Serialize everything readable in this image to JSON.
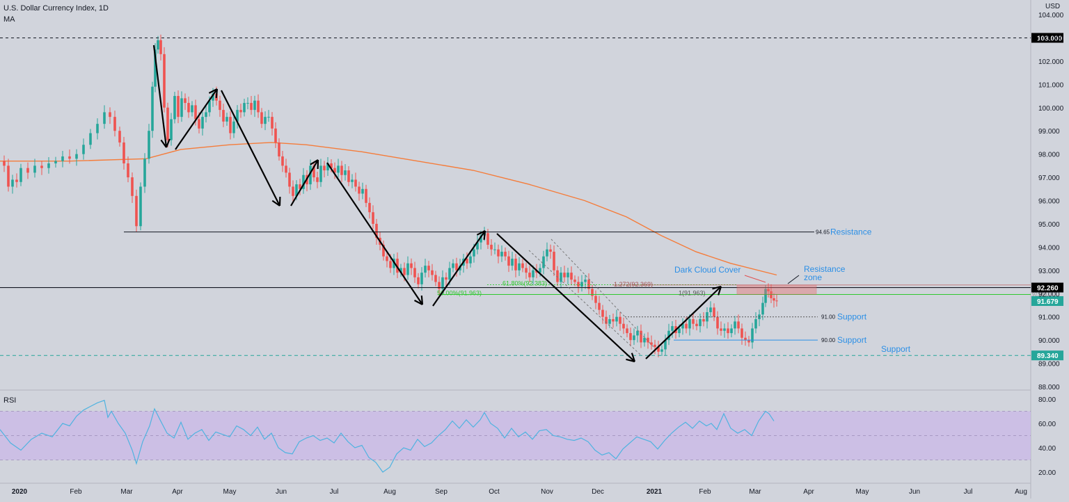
{
  "header": {
    "title": "U.S. Dollar Currency Index, 1D",
    "indicator": "MA",
    "currency": "USD",
    "rsi_label": "RSI"
  },
  "colors": {
    "background": "#d1d4dc",
    "up_candle": "#26a69a",
    "down_candle": "#ef5350",
    "ma_line": "#f57c3a",
    "rsi_line": "#4fb3e0",
    "rsi_band": "#c9b8e8",
    "fib": "#2ec82e",
    "label_blue": "#2b8fe6",
    "badge_green": "#26a69a",
    "badge_black": "#000000"
  },
  "chart_data": [
    {
      "type": "candlestick",
      "title": "U.S. Dollar Currency Index, 1D",
      "ylabel": "USD",
      "ylim": [
        87.9,
        104.3
      ],
      "y_ticks": [
        "104.000",
        "103.000",
        "102.000",
        "101.000",
        "100.000",
        "99.000",
        "98.000",
        "97.000",
        "96.000",
        "95.000",
        "94.000",
        "93.000",
        "92.000",
        "91.000",
        "90.000",
        "89.000",
        "88.000"
      ],
      "x_ticks": [
        "2020",
        "Feb",
        "Mar",
        "Apr",
        "May",
        "Jun",
        "Jul",
        "Aug",
        "Sep",
        "Oct",
        "Nov",
        "Dec",
        "2021",
        "Feb",
        "Mar",
        "Apr",
        "May",
        "Jun",
        "Jul",
        "Aug"
      ],
      "closes": [
        [
          0,
          97.7
        ],
        [
          6,
          97.5
        ],
        [
          12,
          96.6
        ],
        [
          18,
          96.9
        ],
        [
          24,
          96.8
        ],
        [
          30,
          97.4
        ],
        [
          40,
          97.2
        ],
        [
          50,
          97.5
        ],
        [
          60,
          97.4
        ],
        [
          70,
          97.6
        ],
        [
          80,
          97.7
        ],
        [
          90,
          97.9
        ],
        [
          100,
          97.8
        ],
        [
          110,
          98.0
        ],
        [
          120,
          98.4
        ],
        [
          130,
          98.9
        ],
        [
          140,
          99.3
        ],
        [
          150,
          99.8
        ],
        [
          158,
          99.6
        ],
        [
          165,
          99.0
        ],
        [
          172,
          98.5
        ],
        [
          178,
          97.6
        ],
        [
          184,
          97.0
        ],
        [
          190,
          96.2
        ],
        [
          196,
          94.9
        ],
        [
          202,
          96.6
        ],
        [
          208,
          97.8
        ],
        [
          214,
          99.0
        ],
        [
          219,
          100.9
        ],
        [
          223,
          102.5
        ],
        [
          227,
          102.9
        ],
        [
          231,
          102.3
        ],
        [
          236,
          100.0
        ],
        [
          241,
          98.6
        ],
        [
          246,
          99.5
        ],
        [
          251,
          100.5
        ],
        [
          256,
          99.6
        ],
        [
          261,
          100.4
        ],
        [
          266,
          100.2
        ],
        [
          271,
          99.8
        ],
        [
          276,
          100.1
        ],
        [
          281,
          99.5
        ],
        [
          286,
          99.1
        ],
        [
          291,
          99.6
        ],
        [
          296,
          99.8
        ],
        [
          301,
          100.3
        ],
        [
          306,
          100.6
        ],
        [
          311,
          100.3
        ],
        [
          316,
          99.9
        ],
        [
          321,
          99.4
        ],
        [
          326,
          99.6
        ],
        [
          331,
          98.9
        ],
        [
          336,
          99.4
        ],
        [
          341,
          99.9
        ],
        [
          346,
          99.8
        ],
        [
          351,
          100.2
        ],
        [
          356,
          100.2
        ],
        [
          361,
          99.9
        ],
        [
          366,
          100.3
        ],
        [
          371,
          99.8
        ],
        [
          376,
          99.3
        ],
        [
          381,
          99.6
        ],
        [
          386,
          99.6
        ],
        [
          391,
          99.1
        ],
        [
          396,
          98.5
        ],
        [
          401,
          97.9
        ],
        [
          406,
          97.5
        ],
        [
          411,
          97.2
        ],
        [
          416,
          96.6
        ],
        [
          421,
          96.2
        ],
        [
          426,
          96.7
        ],
        [
          431,
          96.5
        ],
        [
          436,
          97.1
        ],
        [
          441,
          96.7
        ],
        [
          446,
          97.5
        ],
        [
          451,
          97.0
        ],
        [
          456,
          96.8
        ],
        [
          461,
          97.5
        ],
        [
          466,
          97.3
        ],
        [
          471,
          97.6
        ],
        [
          476,
          97.4
        ],
        [
          481,
          97.2
        ],
        [
          486,
          97.5
        ],
        [
          491,
          97.1
        ],
        [
          496,
          97.3
        ],
        [
          501,
          96.8
        ],
        [
          506,
          96.9
        ],
        [
          511,
          96.6
        ],
        [
          516,
          96.3
        ],
        [
          521,
          96.5
        ],
        [
          526,
          95.9
        ],
        [
          531,
          95.5
        ],
        [
          536,
          95.0
        ],
        [
          541,
          94.4
        ],
        [
          546,
          94.1
        ],
        [
          551,
          93.6
        ],
        [
          556,
          93.4
        ],
        [
          561,
          93.1
        ],
        [
          566,
          93.5
        ],
        [
          571,
          92.9
        ],
        [
          576,
          93.1
        ],
        [
          581,
          92.8
        ],
        [
          586,
          93.3
        ],
        [
          591,
          93.1
        ],
        [
          596,
          92.7
        ],
        [
          601,
          92.4
        ],
        [
          606,
          92.9
        ],
        [
          611,
          93.2
        ],
        [
          616,
          93.0
        ],
        [
          621,
          92.8
        ],
        [
          626,
          92.5
        ],
        [
          631,
          92.2
        ],
        [
          636,
          92.7
        ],
        [
          641,
          92.6
        ],
        [
          646,
          93.1
        ],
        [
          651,
          93.3
        ],
        [
          656,
          93.0
        ],
        [
          661,
          93.2
        ],
        [
          666,
          93.5
        ],
        [
          671,
          93.3
        ],
        [
          676,
          93.6
        ],
        [
          681,
          93.9
        ],
        [
          686,
          94.2
        ],
        [
          691,
          94.5
        ],
        [
          696,
          94.6
        ],
        [
          701,
          94.1
        ],
        [
          706,
          93.9
        ],
        [
          711,
          93.9
        ],
        [
          716,
          93.6
        ],
        [
          721,
          93.8
        ],
        [
          726,
          93.6
        ],
        [
          731,
          93.2
        ],
        [
          736,
          93.5
        ],
        [
          741,
          93.0
        ],
        [
          746,
          93.3
        ],
        [
          751,
          93.1
        ],
        [
          756,
          92.9
        ],
        [
          761,
          92.7
        ],
        [
          766,
          93.0
        ],
        [
          771,
          92.9
        ],
        [
          776,
          93.1
        ],
        [
          781,
          93.6
        ],
        [
          786,
          93.9
        ],
        [
          791,
          93.8
        ],
        [
          796,
          93.0
        ],
        [
          801,
          92.5
        ],
        [
          806,
          92.9
        ],
        [
          811,
          92.7
        ],
        [
          816,
          92.9
        ],
        [
          821,
          92.6
        ],
        [
          826,
          92.5
        ],
        [
          831,
          92.3
        ],
        [
          836,
          92.5
        ],
        [
          841,
          92.6
        ],
        [
          846,
          92.2
        ],
        [
          851,
          91.9
        ],
        [
          856,
          91.6
        ],
        [
          861,
          91.3
        ],
        [
          866,
          91.0
        ],
        [
          871,
          90.7
        ],
        [
          876,
          90.9
        ],
        [
          881,
          90.8
        ],
        [
          886,
          91.0
        ],
        [
          891,
          90.7
        ],
        [
          896,
          90.5
        ],
        [
          901,
          90.3
        ],
        [
          906,
          90.0
        ],
        [
          911,
          90.2
        ],
        [
          916,
          90.4
        ],
        [
          921,
          89.9
        ],
        [
          926,
          90.1
        ],
        [
          931,
          89.9
        ],
        [
          936,
          89.8
        ],
        [
          941,
          89.7
        ],
        [
          946,
          89.5
        ],
        [
          951,
          89.6
        ],
        [
          956,
          90.0
        ],
        [
          961,
          90.4
        ],
        [
          966,
          90.6
        ],
        [
          971,
          90.3
        ],
        [
          976,
          90.5
        ],
        [
          981,
          90.7
        ],
        [
          986,
          90.5
        ],
        [
          991,
          90.9
        ],
        [
          996,
          90.7
        ],
        [
          1001,
          90.6
        ],
        [
          1006,
          90.9
        ],
        [
          1011,
          90.8
        ],
        [
          1016,
          91.2
        ],
        [
          1021,
          91.4
        ],
        [
          1026,
          91.0
        ],
        [
          1031,
          90.5
        ],
        [
          1036,
          90.4
        ],
        [
          1041,
          90.5
        ],
        [
          1046,
          90.3
        ],
        [
          1051,
          90.5
        ],
        [
          1056,
          90.8
        ],
        [
          1061,
          90.5
        ],
        [
          1066,
          90.1
        ],
        [
          1071,
          90.0
        ],
        [
          1076,
          89.9
        ],
        [
          1081,
          90.5
        ],
        [
          1086,
          90.9
        ],
        [
          1091,
          91.1
        ],
        [
          1096,
          91.6
        ],
        [
          1100,
          92.2
        ],
        [
          1104,
          92.1
        ],
        [
          1108,
          91.8
        ],
        [
          1112,
          91.7
        ],
        [
          1116,
          91.679
        ]
      ]
    },
    {
      "type": "line",
      "title": "RSI",
      "ylim": [
        15,
        82
      ],
      "y_ticks": [
        "80.00",
        "60.00",
        "40.00",
        "20.00"
      ],
      "band": [
        30,
        70
      ],
      "x": [
        0,
        15,
        30,
        45,
        60,
        75,
        90,
        100,
        110,
        120,
        130,
        140,
        150,
        155,
        160,
        170,
        180,
        190,
        196,
        205,
        215,
        222,
        230,
        240,
        250,
        260,
        270,
        280,
        290,
        300,
        310,
        320,
        330,
        340,
        350,
        360,
        370,
        380,
        390,
        400,
        410,
        420,
        430,
        440,
        450,
        460,
        470,
        480,
        490,
        500,
        510,
        520,
        530,
        540,
        550,
        560,
        570,
        580,
        590,
        600,
        610,
        620,
        630,
        640,
        650,
        660,
        670,
        680,
        690,
        696,
        705,
        715,
        725,
        735,
        745,
        755,
        765,
        775,
        785,
        795,
        805,
        815,
        825,
        835,
        845,
        855,
        865,
        875,
        885,
        895,
        905,
        915,
        925,
        935,
        945,
        955,
        965,
        975,
        985,
        995,
        1005,
        1015,
        1022,
        1030,
        1040,
        1050,
        1060,
        1070,
        1080,
        1090,
        1100,
        1105,
        1112
      ],
      "y": [
        55,
        44,
        38,
        47,
        52,
        49,
        60,
        58,
        66,
        71,
        74,
        77,
        79,
        65,
        70,
        60,
        52,
        38,
        27,
        45,
        58,
        72,
        63,
        52,
        48,
        61,
        47,
        52,
        55,
        46,
        53,
        51,
        49,
        58,
        55,
        50,
        57,
        47,
        52,
        40,
        36,
        35,
        45,
        48,
        50,
        46,
        48,
        44,
        52,
        45,
        40,
        42,
        32,
        28,
        20,
        24,
        35,
        40,
        38,
        47,
        41,
        44,
        50,
        55,
        62,
        56,
        63,
        57,
        63,
        69,
        60,
        56,
        48,
        56,
        49,
        53,
        47,
        54,
        55,
        50,
        49,
        47,
        46,
        48,
        45,
        38,
        34,
        36,
        31,
        39,
        44,
        49,
        47,
        45,
        39,
        46,
        52,
        57,
        61,
        56,
        62,
        58,
        60,
        55,
        68,
        56,
        52,
        55,
        50,
        62,
        70,
        68,
        62
      ]
    }
  ],
  "levels": {
    "price_103": "103.000",
    "price_current_black": "92.260",
    "price_current_green": "91.679",
    "price_89": "89.340",
    "l_9465": "94.65",
    "resistance": "Resistance",
    "l_9100": "91.00",
    "support": "Support",
    "l_9000": "90.00",
    "fib_618": "61.80%(92.383)",
    "fib_50": "50.00%(91.963)",
    "fib_1272": "1.272(92.369)",
    "fib_1": "1(91.963)",
    "fib_edge": "92.369",
    "dark_cloud_cover": "Dark Cloud Cover",
    "resistance_zone_1": "Resistance",
    "resistance_zone_2": "zone"
  }
}
